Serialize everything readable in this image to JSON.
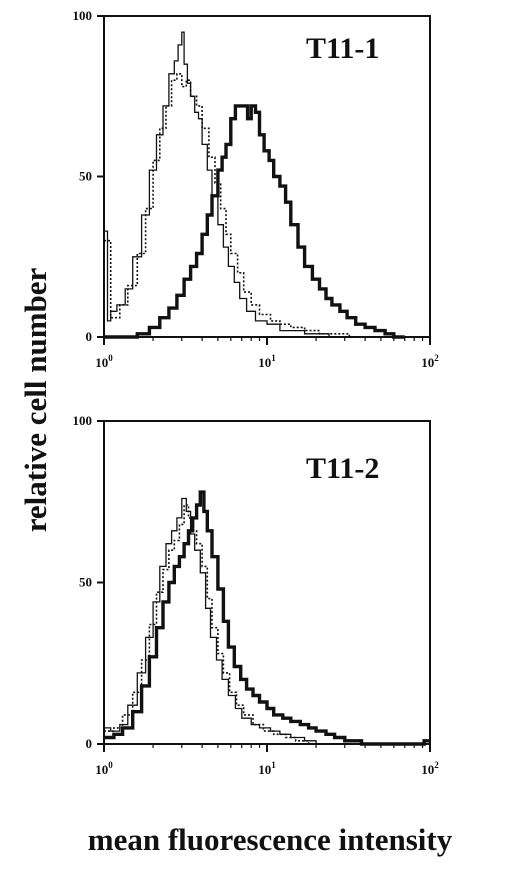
{
  "chart_data": [
    {
      "type": "line",
      "panel_label": "T11-1",
      "xscale": "log",
      "xlim": [
        1,
        100
      ],
      "ylim": [
        0,
        100
      ],
      "xticks": [
        {
          "base": "10",
          "exp": "0"
        },
        {
          "base": "10",
          "exp": "1"
        },
        {
          "base": "10",
          "exp": "2"
        }
      ],
      "yticks": [
        "0",
        "50",
        "100"
      ],
      "grid": false,
      "series": [
        {
          "style": "thin-solid",
          "x": [
            1.0,
            1.05,
            1.1,
            1.2,
            1.35,
            1.5,
            1.7,
            1.9,
            2.1,
            2.3,
            2.5,
            2.7,
            2.85,
            3.0,
            3.1,
            3.25,
            3.4,
            3.6,
            3.8,
            4.0,
            4.3,
            4.6,
            5.0,
            5.4,
            5.8,
            6.3,
            6.8,
            7.5,
            8.5,
            10,
            12,
            14,
            17,
            20,
            24
          ],
          "y": [
            33,
            5,
            8,
            10,
            15,
            25,
            38,
            52,
            63,
            72,
            82,
            86,
            91,
            95,
            85,
            79,
            75,
            70,
            68,
            60,
            52,
            44,
            35,
            28,
            22,
            17,
            12,
            8,
            5,
            4,
            2,
            2,
            1,
            1,
            0
          ]
        },
        {
          "style": "dotted",
          "x": [
            1.0,
            1.1,
            1.25,
            1.4,
            1.6,
            1.8,
            2.0,
            2.2,
            2.4,
            2.6,
            2.8,
            3.0,
            3.2,
            3.4,
            3.7,
            4.0,
            4.4,
            4.8,
            5.2,
            5.6,
            6.0,
            6.6,
            7.2,
            8.0,
            9.0,
            10.5,
            12,
            14,
            17,
            21,
            26,
            32
          ],
          "y": [
            30,
            6,
            10,
            16,
            26,
            40,
            55,
            65,
            72,
            80,
            82,
            78,
            80,
            75,
            72,
            65,
            56,
            48,
            40,
            32,
            26,
            20,
            14,
            10,
            7,
            5,
            4,
            3,
            2,
            1,
            1,
            0
          ]
        },
        {
          "style": "thick-solid",
          "x": [
            1.0,
            1.3,
            1.6,
            1.9,
            2.2,
            2.5,
            2.8,
            3.1,
            3.4,
            3.7,
            4.0,
            4.3,
            4.6,
            5.0,
            5.3,
            5.6,
            6.0,
            6.4,
            6.8,
            7.2,
            7.6,
            8.0,
            8.5,
            9.0,
            9.6,
            10.3,
            11,
            12,
            13,
            14,
            15.5,
            17,
            19,
            21,
            23,
            25,
            28,
            31,
            35,
            40,
            46,
            53,
            60,
            70
          ],
          "y": [
            0,
            0,
            1,
            3,
            6,
            9,
            13,
            18,
            22,
            26,
            32,
            38,
            44,
            52,
            56,
            60,
            68,
            72,
            72,
            72,
            68,
            72,
            70,
            63,
            58,
            55,
            50,
            47,
            42,
            35,
            28,
            22,
            18,
            15,
            12,
            10,
            8,
            6,
            4,
            3,
            2,
            1,
            0,
            0
          ]
        }
      ]
    },
    {
      "type": "line",
      "panel_label": "T11-2",
      "xscale": "log",
      "xlim": [
        1,
        100
      ],
      "ylim": [
        0,
        100
      ],
      "xticks": [
        {
          "base": "10",
          "exp": "0"
        },
        {
          "base": "10",
          "exp": "1"
        },
        {
          "base": "10",
          "exp": "2"
        }
      ],
      "yticks": [
        "0",
        "50",
        "100"
      ],
      "grid": false,
      "series": [
        {
          "style": "thin-solid",
          "x": [
            1.0,
            1.1,
            1.25,
            1.4,
            1.6,
            1.8,
            2.0,
            2.2,
            2.4,
            2.6,
            2.8,
            3.0,
            3.2,
            3.4,
            3.6,
            3.9,
            4.2,
            4.5,
            4.9,
            5.3,
            5.8,
            6.4,
            7.0,
            8.0,
            9.0,
            10.5,
            12,
            14,
            17,
            20
          ],
          "y": [
            5,
            4,
            6,
            12,
            22,
            33,
            44,
            55,
            62,
            66,
            70,
            76,
            72,
            65,
            60,
            53,
            42,
            33,
            26,
            20,
            15,
            11,
            8,
            6,
            5,
            4,
            3,
            2,
            1,
            0
          ]
        },
        {
          "style": "dotted",
          "x": [
            1.0,
            1.15,
            1.3,
            1.5,
            1.7,
            1.9,
            2.1,
            2.3,
            2.5,
            2.7,
            2.9,
            3.1,
            3.3,
            3.5,
            3.7,
            4.0,
            4.3,
            4.6,
            5.0,
            5.4,
            5.9,
            6.5,
            7.2,
            8.2,
            9.5,
            11,
            13,
            15,
            18
          ],
          "y": [
            4,
            5,
            9,
            16,
            26,
            37,
            47,
            54,
            60,
            63,
            68,
            74,
            70,
            66,
            62,
            55,
            45,
            36,
            28,
            22,
            16,
            12,
            9,
            6,
            4,
            3,
            2,
            1,
            0
          ]
        },
        {
          "style": "thick-solid",
          "x": [
            1.0,
            1.15,
            1.3,
            1.5,
            1.7,
            1.9,
            2.1,
            2.3,
            2.5,
            2.7,
            2.9,
            3.1,
            3.3,
            3.5,
            3.7,
            3.9,
            4.1,
            4.3,
            4.6,
            5.0,
            5.4,
            5.8,
            6.3,
            6.9,
            7.5,
            8.2,
            9.0,
            10,
            11,
            12.5,
            14,
            16,
            18,
            20,
            23,
            26,
            30,
            34,
            38,
            45,
            55,
            65,
            75,
            85,
            92,
            100
          ],
          "y": [
            2,
            3,
            5,
            10,
            18,
            27,
            36,
            44,
            50,
            55,
            58,
            62,
            66,
            70,
            74,
            78,
            72,
            66,
            58,
            48,
            38,
            30,
            24,
            20,
            17,
            15,
            13,
            11,
            9,
            8,
            7,
            6,
            5,
            4,
            3,
            2,
            1,
            1,
            0,
            0,
            0,
            0,
            0,
            0,
            1,
            1
          ]
        }
      ]
    }
  ],
  "ylabel": "relative cell number",
  "xlabel": "mean fluorescence intensity"
}
